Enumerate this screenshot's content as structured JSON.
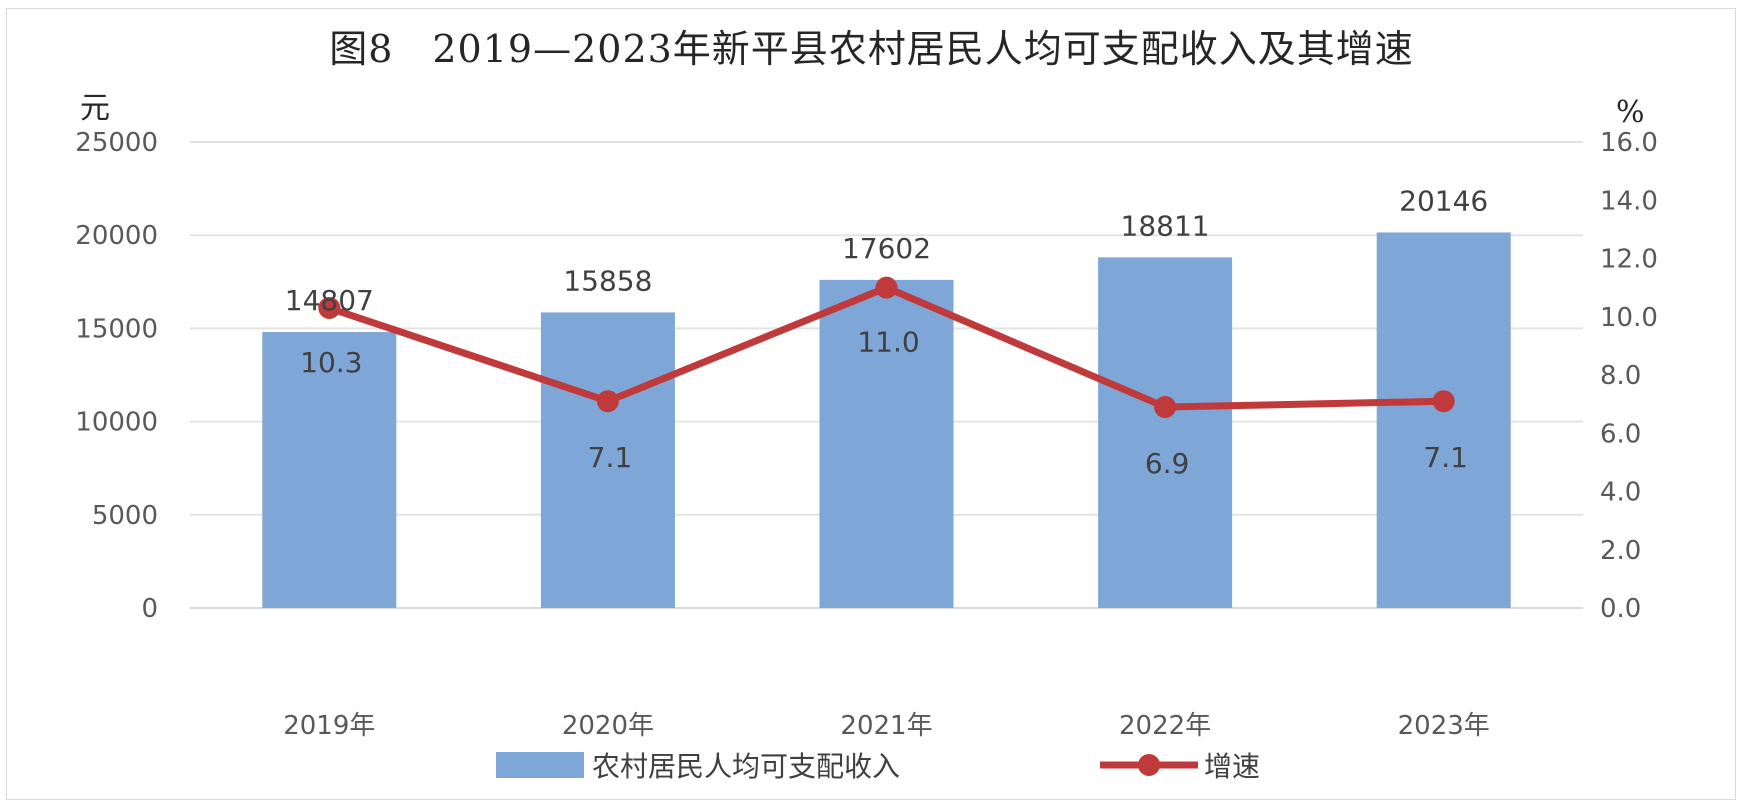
{
  "chart_data": {
    "type": "bar",
    "title": "图8　2019—2023年新平县农村居民人均可支配收入及其增速",
    "categories": [
      "2019年",
      "2020年",
      "2021年",
      "2022年",
      "2023年"
    ],
    "series": [
      {
        "name": "农村居民人均可支配收入",
        "type": "bar",
        "axis": "left",
        "values": [
          14807,
          15858,
          17602,
          18811,
          20146
        ],
        "color": "#7ea6d6"
      },
      {
        "name": "增速",
        "type": "line",
        "axis": "right",
        "values": [
          10.3,
          7.1,
          11.0,
          6.9,
          7.1
        ],
        "color": "#c0393b"
      }
    ],
    "y_left": {
      "unit": "元",
      "ylim": [
        0,
        25000
      ],
      "ticks": [
        "0",
        "5000",
        "10000",
        "15000",
        "20000",
        "25000"
      ]
    },
    "y_right": {
      "unit": "%",
      "ylim": [
        0,
        16
      ],
      "ticks": [
        "0.0",
        "2.0",
        "4.0",
        "6.0",
        "8.0",
        "10.0",
        "12.0",
        "14.0",
        "16.0"
      ]
    },
    "bar_labels": [
      "14807",
      "15858",
      "17602",
      "18811",
      "20146"
    ],
    "line_labels": [
      "10.3",
      "7.1",
      "11.0",
      "6.9",
      "7.1"
    ],
    "grid": true,
    "legend_position": "bottom"
  }
}
